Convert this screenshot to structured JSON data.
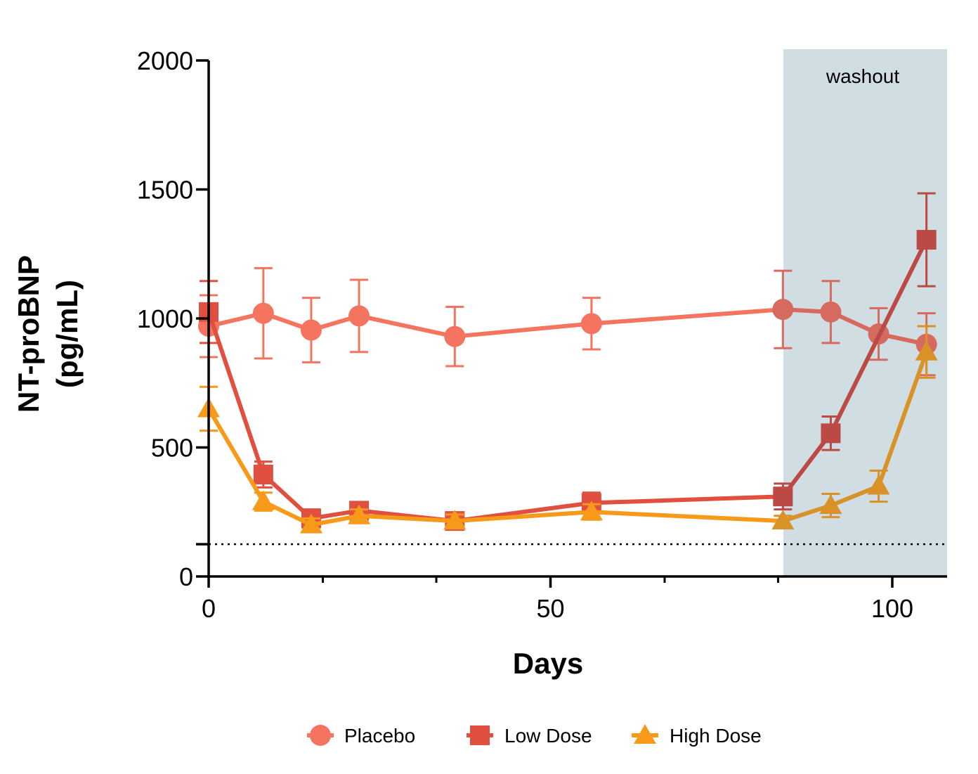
{
  "chart_data": {
    "type": "line",
    "title": "",
    "xlabel": "Days",
    "ylabel_line1": "NT-proBNP",
    "ylabel_line2": "(pg/mL)",
    "xlim": [
      0,
      108
    ],
    "ylim": [
      0,
      2000
    ],
    "x_ticks": [
      0,
      50,
      100
    ],
    "x_tick_labels": [
      "0",
      "50",
      "100"
    ],
    "x_minor_ticks": [
      16.7,
      33.3,
      66.7,
      83.3
    ],
    "y_ticks": [
      0,
      500,
      1000,
      1500,
      2000
    ],
    "y_tick_labels": [
      "0",
      "500",
      "1000",
      "1500",
      "2000"
    ],
    "y_extra_tick": 125,
    "reference_line": {
      "y": 125,
      "style": "dotted"
    },
    "shaded_region": {
      "x_start": 84,
      "x_end": 108,
      "label": "washout",
      "color": "#d0dee4"
    },
    "grid": false,
    "legend_position": "bottom",
    "series": [
      {
        "name": "Placebo",
        "marker": "circle",
        "color": "#f47460",
        "washout_color": "#d66a5f",
        "points": [
          {
            "x": 0,
            "y": 970,
            "err": 120
          },
          {
            "x": 8,
            "y": 1020,
            "err": 175
          },
          {
            "x": 15,
            "y": 955,
            "err": 125
          },
          {
            "x": 22,
            "y": 1010,
            "err": 140
          },
          {
            "x": 36,
            "y": 930,
            "err": 115
          },
          {
            "x": 56,
            "y": 980,
            "err": 100
          },
          {
            "x": 84,
            "y": 1035,
            "err": 150
          },
          {
            "x": 91,
            "y": 1025,
            "err": 120
          },
          {
            "x": 98,
            "y": 940,
            "err": 100
          },
          {
            "x": 105,
            "y": 900,
            "err": 120
          }
        ]
      },
      {
        "name": "Low Dose",
        "marker": "square",
        "color": "#e04f3f",
        "washout_color": "#bb4a44",
        "points": [
          {
            "x": 0,
            "y": 1025,
            "err": 120
          },
          {
            "x": 8,
            "y": 395,
            "err": 50
          },
          {
            "x": 15,
            "y": 225,
            "err": 35
          },
          {
            "x": 22,
            "y": 255,
            "err": 30
          },
          {
            "x": 36,
            "y": 215,
            "err": 25
          },
          {
            "x": 56,
            "y": 285,
            "err": 40
          },
          {
            "x": 84,
            "y": 310,
            "err": 50
          },
          {
            "x": 91,
            "y": 555,
            "err": 65
          },
          {
            "x": 105,
            "y": 1305,
            "err": 180
          }
        ]
      },
      {
        "name": "High Dose",
        "marker": "triangle",
        "color": "#f79a1a",
        "washout_color": "#d99228",
        "points": [
          {
            "x": 0,
            "y": 650,
            "err": 85
          },
          {
            "x": 8,
            "y": 290,
            "err": 35
          },
          {
            "x": 15,
            "y": 200,
            "err": 25
          },
          {
            "x": 22,
            "y": 235,
            "err": 25
          },
          {
            "x": 36,
            "y": 215,
            "err": 25
          },
          {
            "x": 56,
            "y": 250,
            "err": 30
          },
          {
            "x": 84,
            "y": 215,
            "err": 20
          },
          {
            "x": 91,
            "y": 275,
            "err": 45
          },
          {
            "x": 98,
            "y": 350,
            "err": 60
          },
          {
            "x": 105,
            "y": 870,
            "err": 100
          }
        ]
      }
    ]
  }
}
